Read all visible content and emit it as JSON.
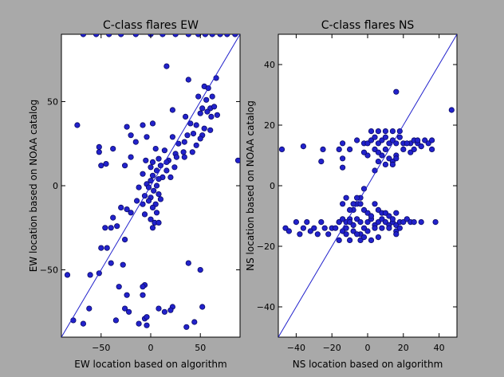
{
  "figure": {
    "background": "#a9a9a9",
    "plot_background": "#ffffff",
    "marker_color": "#2222cc",
    "marker_edge": "#0a0a66",
    "line_color": "#2222cc"
  },
  "chart_data": [
    {
      "type": "scatter",
      "title": "C-class flares EW",
      "xlabel": "EW location based on algorithm",
      "ylabel": "EW location based on NOAA catalog",
      "xlim": [
        -90,
        90
      ],
      "ylim": [
        -90,
        90
      ],
      "xticks": [
        -50,
        0,
        50
      ],
      "yticks": [
        -50,
        0,
        50
      ],
      "diagonal": true,
      "grid": false,
      "points": [
        [
          -68,
          90
        ],
        [
          -55,
          90
        ],
        [
          -42,
          90
        ],
        [
          -30,
          90
        ],
        [
          -15,
          90
        ],
        [
          0,
          90
        ],
        [
          12,
          90
        ],
        [
          25,
          90
        ],
        [
          38,
          90
        ],
        [
          48,
          90
        ],
        [
          55,
          90
        ],
        [
          62,
          90
        ],
        [
          70,
          90
        ],
        [
          77,
          90
        ],
        [
          85,
          90
        ],
        [
          16,
          71
        ],
        [
          38,
          63
        ],
        [
          54,
          59
        ],
        [
          62,
          53
        ],
        [
          66,
          64
        ],
        [
          58,
          58
        ],
        [
          48,
          53
        ],
        [
          56,
          51
        ],
        [
          52,
          46
        ],
        [
          60,
          46
        ],
        [
          64,
          47
        ],
        [
          57,
          44
        ],
        [
          50,
          43
        ],
        [
          67,
          42
        ],
        [
          61,
          41
        ],
        [
          22,
          45
        ],
        [
          35,
          41
        ],
        [
          2,
          37
        ],
        [
          40,
          37
        ],
        [
          46,
          36
        ],
        [
          54,
          34
        ],
        [
          60,
          33
        ],
        [
          43,
          31
        ],
        [
          37,
          30
        ],
        [
          52,
          30
        ],
        [
          -20,
          30
        ],
        [
          -4,
          29
        ],
        [
          22,
          29
        ],
        [
          50,
          28
        ],
        [
          34,
          26
        ],
        [
          28,
          25
        ],
        [
          46,
          24
        ],
        [
          -74,
          36
        ],
        [
          -24,
          35
        ],
        [
          -8,
          36
        ],
        [
          -15,
          26
        ],
        [
          -52,
          23
        ],
        [
          -38,
          22
        ],
        [
          -52,
          20
        ],
        [
          5,
          22
        ],
        [
          14,
          21
        ],
        [
          25,
          19
        ],
        [
          33,
          20
        ],
        [
          42,
          20
        ],
        [
          26,
          17
        ],
        [
          -20,
          17
        ],
        [
          -45,
          13
        ],
        [
          -5,
          15
        ],
        [
          18,
          15
        ],
        [
          34,
          17
        ],
        [
          2,
          14
        ],
        [
          8,
          16
        ],
        [
          16,
          14
        ],
        [
          -26,
          12
        ],
        [
          0,
          11
        ],
        [
          10,
          12
        ],
        [
          24,
          11
        ],
        [
          -50,
          12
        ],
        [
          6,
          9
        ],
        [
          16,
          9
        ],
        [
          -8,
          7
        ],
        [
          2,
          6
        ],
        [
          12,
          5
        ],
        [
          20,
          5
        ],
        [
          0,
          3
        ],
        [
          8,
          4
        ],
        [
          -4,
          1
        ],
        [
          -2,
          -1
        ],
        [
          6,
          0
        ],
        [
          -12,
          -1
        ],
        [
          3,
          -3
        ],
        [
          8,
          -5
        ],
        [
          -6,
          -6
        ],
        [
          0,
          -7
        ],
        [
          -2,
          -9
        ],
        [
          -14,
          -9
        ],
        [
          -8,
          -11
        ],
        [
          5,
          -11
        ],
        [
          10,
          -8
        ],
        [
          2,
          -13
        ],
        [
          -20,
          -16
        ],
        [
          -6,
          -17
        ],
        [
          6,
          -16
        ],
        [
          -24,
          -14
        ],
        [
          -30,
          -13
        ],
        [
          -38,
          -19
        ],
        [
          -34,
          -24
        ],
        [
          -40,
          -25
        ],
        [
          -46,
          -25
        ],
        [
          0,
          -20
        ],
        [
          4,
          -22
        ],
        [
          2,
          -25
        ],
        [
          8,
          -22
        ],
        [
          -44,
          -37
        ],
        [
          -50,
          -37
        ],
        [
          -26,
          -32
        ],
        [
          -40,
          -46
        ],
        [
          -84,
          -53
        ],
        [
          -61,
          -53
        ],
        [
          -52,
          -52
        ],
        [
          38,
          -46
        ],
        [
          50,
          -50
        ],
        [
          -28,
          -47
        ],
        [
          -32,
          -60
        ],
        [
          -6,
          -59
        ],
        [
          -8,
          -60
        ],
        [
          -24,
          -65
        ],
        [
          -8,
          -65
        ],
        [
          -26,
          -73
        ],
        [
          -22,
          -75
        ],
        [
          -62,
          -73
        ],
        [
          -35,
          -80
        ],
        [
          -78,
          -80
        ],
        [
          -68,
          -82
        ],
        [
          -6,
          -79
        ],
        [
          -4,
          -78
        ],
        [
          14,
          -75
        ],
        [
          8,
          -73
        ],
        [
          22,
          -72
        ],
        [
          20,
          -74
        ],
        [
          52,
          -72
        ],
        [
          36,
          -84
        ],
        [
          44,
          -81
        ],
        [
          -12,
          -82
        ],
        [
          -4,
          -83
        ],
        [
          88,
          15
        ]
      ]
    },
    {
      "type": "scatter",
      "title": "C-class flares NS",
      "xlabel": "NS location based on algorithm",
      "ylabel": "NS location based on NOAA catalog",
      "xlim": [
        -50,
        50
      ],
      "ylim": [
        -50,
        50
      ],
      "xticks": [
        -40,
        -20,
        0,
        20,
        40
      ],
      "yticks": [
        -40,
        -20,
        0,
        20,
        40
      ],
      "diagonal": true,
      "grid": false,
      "points": [
        [
          -48,
          12
        ],
        [
          -36,
          13
        ],
        [
          -25,
          12
        ],
        [
          -26,
          8
        ],
        [
          -14,
          14
        ],
        [
          -14,
          6
        ],
        [
          -10,
          12
        ],
        [
          -2,
          14
        ],
        [
          -6,
          15
        ],
        [
          0,
          14
        ],
        [
          2,
          15
        ],
        [
          4,
          16
        ],
        [
          6,
          14
        ],
        [
          8,
          15
        ],
        [
          10,
          16
        ],
        [
          12,
          14
        ],
        [
          14,
          15
        ],
        [
          16,
          14
        ],
        [
          18,
          16
        ],
        [
          20,
          14
        ],
        [
          2,
          18
        ],
        [
          6,
          18
        ],
        [
          10,
          18
        ],
        [
          14,
          18
        ],
        [
          18,
          18
        ],
        [
          24,
          14
        ],
        [
          26,
          15
        ],
        [
          28,
          14
        ],
        [
          30,
          13
        ],
        [
          32,
          15
        ],
        [
          34,
          14
        ],
        [
          36,
          12
        ],
        [
          36,
          15
        ],
        [
          -16,
          12
        ],
        [
          -14,
          9
        ],
        [
          4,
          12
        ],
        [
          8,
          10
        ],
        [
          12,
          9
        ],
        [
          16,
          10
        ],
        [
          14,
          8
        ],
        [
          10,
          12
        ],
        [
          6,
          11
        ],
        [
          0,
          10
        ],
        [
          -2,
          11
        ],
        [
          20,
          12
        ],
        [
          22,
          14
        ],
        [
          24,
          11
        ],
        [
          26,
          12
        ],
        [
          28,
          15
        ],
        [
          30,
          13
        ],
        [
          6,
          8
        ],
        [
          10,
          7
        ],
        [
          14,
          7
        ],
        [
          16,
          9
        ],
        [
          4,
          5
        ],
        [
          -2,
          -1
        ],
        [
          -4,
          -4
        ],
        [
          -6,
          -6
        ],
        [
          -8,
          -8
        ],
        [
          -10,
          -11
        ],
        [
          -12,
          -12
        ],
        [
          -16,
          -12
        ],
        [
          -20,
          -14
        ],
        [
          -24,
          -14
        ],
        [
          -26,
          -12
        ],
        [
          -30,
          -14
        ],
        [
          -34,
          -12
        ],
        [
          -36,
          -14
        ],
        [
          -46,
          -14
        ],
        [
          -44,
          -15
        ],
        [
          -40,
          -12
        ],
        [
          -38,
          -16
        ],
        [
          -32,
          -15
        ],
        [
          -28,
          -16
        ],
        [
          -22,
          -16
        ],
        [
          -18,
          -14
        ],
        [
          -16,
          -12
        ],
        [
          -14,
          -11
        ],
        [
          -12,
          -14
        ],
        [
          -10,
          -12
        ],
        [
          -8,
          -13
        ],
        [
          -6,
          -11
        ],
        [
          -4,
          -12
        ],
        [
          -2,
          -14
        ],
        [
          0,
          -12
        ],
        [
          2,
          -11
        ],
        [
          4,
          -13
        ],
        [
          6,
          -12
        ],
        [
          8,
          -11
        ],
        [
          10,
          -12
        ],
        [
          12,
          -13
        ],
        [
          14,
          -12
        ],
        [
          16,
          -13
        ],
        [
          18,
          -12
        ],
        [
          20,
          -12
        ],
        [
          22,
          -11
        ],
        [
          24,
          -12
        ],
        [
          26,
          -12
        ],
        [
          30,
          -12
        ],
        [
          38,
          -12
        ],
        [
          -10,
          -8
        ],
        [
          -8,
          -6
        ],
        [
          -6,
          -4
        ],
        [
          -4,
          -6
        ],
        [
          -2,
          -8
        ],
        [
          0,
          -9
        ],
        [
          2,
          -10
        ],
        [
          4,
          -6
        ],
        [
          6,
          -8
        ],
        [
          8,
          -9
        ],
        [
          10,
          -9
        ],
        [
          12,
          -10
        ],
        [
          14,
          -11
        ],
        [
          16,
          -9
        ],
        [
          -14,
          -15
        ],
        [
          -12,
          -16
        ],
        [
          -8,
          -15
        ],
        [
          -4,
          -16
        ],
        [
          0,
          -15
        ],
        [
          4,
          -14
        ],
        [
          8,
          -14
        ],
        [
          12,
          -14
        ],
        [
          16,
          -15
        ],
        [
          18,
          -14
        ],
        [
          -16,
          -18
        ],
        [
          -10,
          -18
        ],
        [
          -4,
          -18
        ],
        [
          2,
          -18
        ],
        [
          6,
          -17
        ],
        [
          -2,
          -17
        ],
        [
          -6,
          -16
        ],
        [
          16,
          -16
        ],
        [
          -14,
          -6
        ],
        [
          -12,
          -4
        ],
        [
          16,
          31
        ],
        [
          47,
          25
        ]
      ]
    }
  ]
}
